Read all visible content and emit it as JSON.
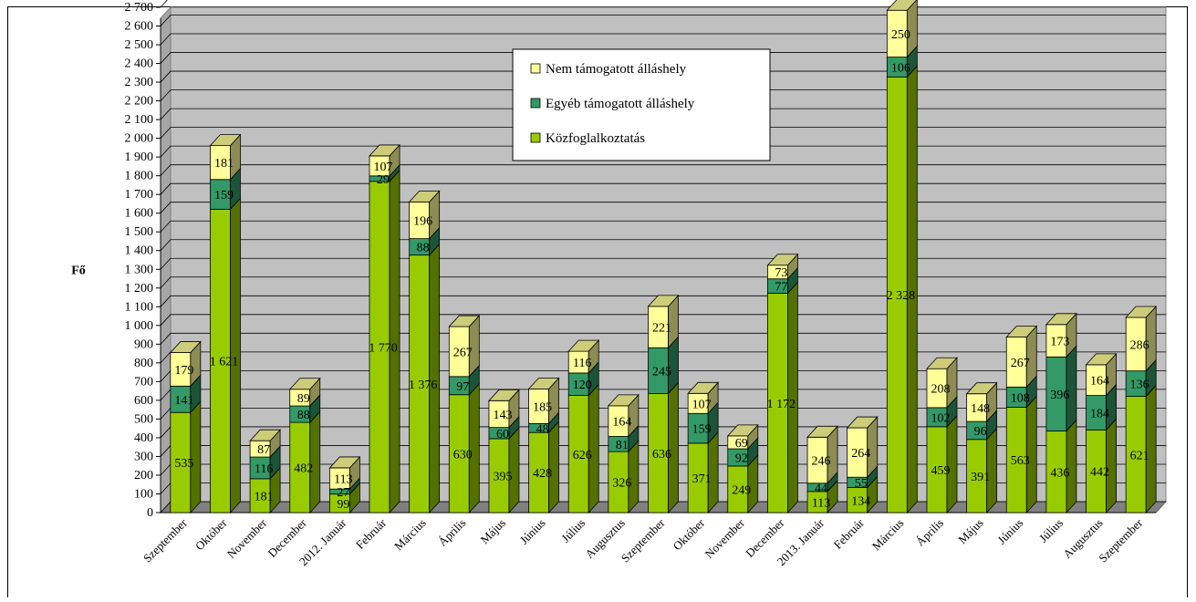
{
  "chart_data": {
    "type": "bar",
    "stacked": true,
    "three_d": true,
    "ylabel": "Fő",
    "ylim": [
      0,
      2700
    ],
    "ytick_step": 100,
    "yticks": [
      "0",
      "100",
      "200",
      "300",
      "400",
      "500",
      "600",
      "700",
      "800",
      "900",
      "1 000",
      "1 100",
      "1 200",
      "1 300",
      "1 400",
      "1 500",
      "1 600",
      "1 700",
      "1 800",
      "1 900",
      "2 000",
      "2 100",
      "2 200",
      "2 300",
      "2 400",
      "2 500",
      "2 600",
      "2 700"
    ],
    "grid": true,
    "legend_position": "top-center",
    "categories": [
      "Szeptember",
      "Október",
      "November",
      "December",
      "2012. Január",
      "Február",
      "Március",
      "Április",
      "Május",
      "Június",
      "Július",
      "Augusztus",
      "Szeptember",
      "Október",
      "November",
      "December",
      "2013. Január",
      "Február",
      "Március",
      "Április",
      "Május",
      "Június",
      "Július",
      "Augusztus",
      "Szeptember"
    ],
    "series": [
      {
        "name": "Közfoglalkoztatás",
        "color": "#99cc00",
        "values": [
          535,
          1621,
          181,
          482,
          99,
          1770,
          1376,
          630,
          395,
          428,
          626,
          326,
          636,
          371,
          249,
          1172,
          113,
          134,
          2328,
          459,
          391,
          563,
          436,
          442,
          621
        ],
        "labels": [
          "535",
          "1 621",
          "181",
          "482",
          "99",
          "1 770",
          "1 376",
          "630",
          "395",
          "428",
          "626",
          "326",
          "636",
          "371",
          "249",
          "1 172",
          "113",
          "134",
          "2 328",
          "459",
          "391",
          "563",
          "436",
          "442",
          "621"
        ]
      },
      {
        "name": "Egyéb támogatott álláshely",
        "color": "#339966",
        "values": [
          141,
          159,
          116,
          88,
          27,
          29,
          88,
          97,
          60,
          48,
          120,
          81,
          245,
          159,
          92,
          77,
          44,
          55,
          106,
          102,
          96,
          108,
          396,
          184,
          136
        ],
        "labels": [
          "141",
          "159",
          "116",
          "88",
          "27",
          "29",
          "88",
          "97",
          "60",
          "48",
          "120",
          "81",
          "245",
          "159",
          "92",
          "77",
          "44",
          "55",
          "106",
          "102",
          "96",
          "108",
          "396",
          "184",
          "136"
        ]
      },
      {
        "name": "Nem támogatott álláshely",
        "color": "#ffff99",
        "values": [
          179,
          181,
          87,
          89,
          113,
          107,
          196,
          267,
          143,
          185,
          116,
          164,
          221,
          107,
          69,
          73,
          246,
          264,
          250,
          208,
          148,
          267,
          173,
          164,
          286
        ],
        "labels": [
          "179",
          "181",
          "87",
          "89",
          "113",
          "107",
          "196",
          "267",
          "143",
          "185",
          "116",
          "164",
          "221",
          "107",
          "69",
          "73",
          "246",
          "264",
          "250",
          "208",
          "148",
          "267",
          "173",
          "164",
          "286"
        ]
      }
    ],
    "legend": [
      "Nem támogatott álláshely",
      "Egyéb támogatott álláshely",
      "Közfoglalkoztatás"
    ]
  }
}
